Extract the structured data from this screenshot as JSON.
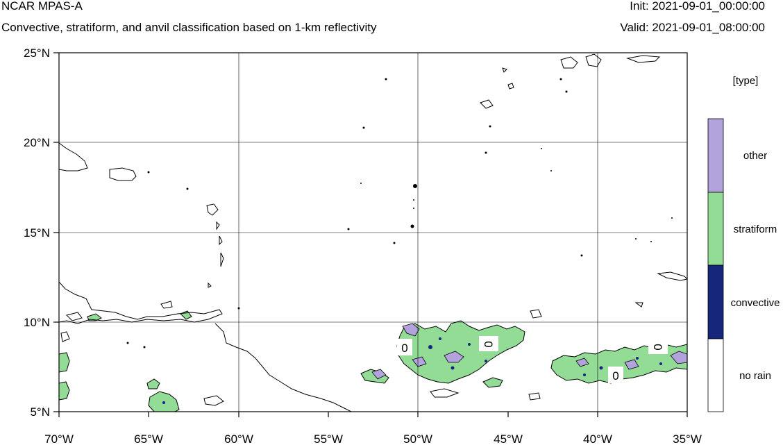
{
  "header": {
    "title": "NCAR MPAS-A",
    "subtitle": "Convective, stratiform, and anvil classification based on 1-km reflectivity",
    "init": "Init: 2021-09-01_00:00:00",
    "valid": "Valid: 2021-09-01_08:00:00"
  },
  "map": {
    "lon_range": [
      -70,
      -35
    ],
    "lat_range": [
      5,
      25
    ],
    "lon_ticks": [
      -70,
      -65,
      -60,
      -55,
      -50,
      -45,
      -40,
      -35
    ],
    "lat_ticks": [
      5,
      10,
      15,
      20,
      25
    ],
    "lon_labels": [
      "70°W",
      "65°W",
      "60°W",
      "55°W",
      "50°W",
      "45°W",
      "40°W",
      "35°W"
    ],
    "lat_labels": [
      "5°N",
      "10°N",
      "15°N",
      "20°N",
      "25°N"
    ],
    "grid": true,
    "contour_labels": [
      "0",
      "0",
      "0",
      "0"
    ]
  },
  "colorbar": {
    "title": "[type]",
    "categories": [
      {
        "label": "other",
        "color": "#b3a3dc"
      },
      {
        "label": "stratiform",
        "color": "#92dc96"
      },
      {
        "label": "convective",
        "color": "#16267a"
      },
      {
        "label": "no rain",
        "color": "#ffffff"
      }
    ]
  },
  "colors": {
    "other": "#b3a3dc",
    "stratiform": "#92dc96",
    "convective": "#16267a",
    "coastline": "#000000",
    "grid": "#000000"
  }
}
